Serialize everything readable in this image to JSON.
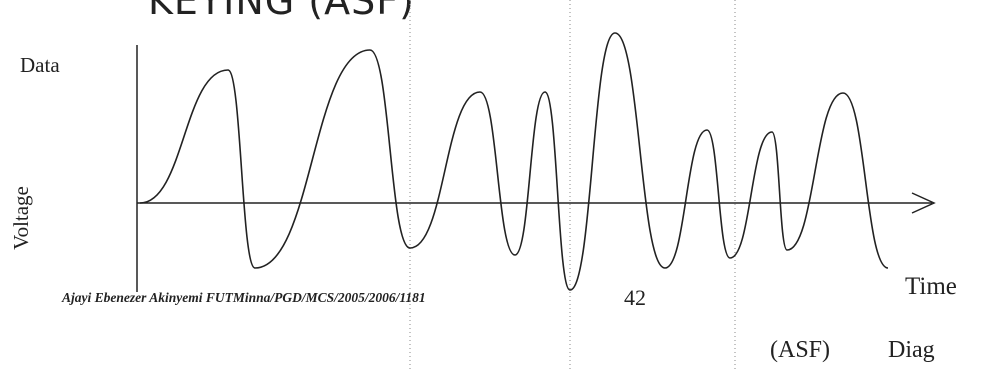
{
  "header": {
    "title": "KEYING (ASF)"
  },
  "diagram": {
    "y_label": "Voltage",
    "signal_label": "Data",
    "x_label": "Time"
  },
  "footer": {
    "author": "Ajayi Ebenezer Akinyemi FUTMinna/PGD/MCS/2005/2006/1181",
    "page": "42"
  },
  "next_line": {
    "left": "(ASF)",
    "right": "Diag"
  }
}
